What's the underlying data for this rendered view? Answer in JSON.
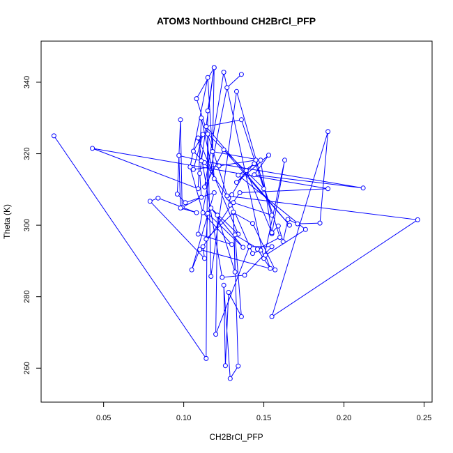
{
  "chart_data": {
    "type": "line",
    "title": "ATOM3 Northbound CH2BrCl_PFP",
    "xlabel": "CH2BrCl_PFP",
    "ylabel": "Theta (K)",
    "xlim": [
      0.011,
      0.255
    ],
    "ylim": [
      250.5,
      351.5
    ],
    "xticks": [
      0.05,
      0.1,
      0.15,
      0.2,
      0.25
    ],
    "xtick_labels": [
      "0.05",
      "0.10",
      "0.15",
      "0.20",
      "0.25"
    ],
    "yticks": [
      260,
      280,
      300,
      320,
      340
    ],
    "ytick_labels": [
      "260",
      "280",
      "300",
      "320",
      "340"
    ],
    "grid": false,
    "legend": "none",
    "markers": "open-circle",
    "series": [
      {
        "color": "#0000ff",
        "points": [
          [
            0.019,
            325.0
          ],
          [
            0.114,
            262.7
          ],
          [
            0.115,
            332.0
          ],
          [
            0.119,
            344.1
          ],
          [
            0.118,
            320.6
          ],
          [
            0.148,
            318.2
          ],
          [
            0.155,
            297.6
          ],
          [
            0.163,
            318.2
          ],
          [
            0.15,
            290.7
          ],
          [
            0.125,
            342.8
          ],
          [
            0.113,
            310.7
          ],
          [
            0.125,
            321.1
          ],
          [
            0.166,
            300.0
          ],
          [
            0.114,
            327.6
          ],
          [
            0.136,
            329.5
          ],
          [
            0.15,
            310.2
          ],
          [
            0.115,
            325.5
          ],
          [
            0.117,
            285.7
          ],
          [
            0.133,
            337.4
          ],
          [
            0.155,
            302.8
          ],
          [
            0.131,
            306.3
          ],
          [
            0.129,
            305.6
          ],
          [
            0.108,
            335.4
          ],
          [
            0.119,
            344.1
          ],
          [
            0.11,
            314.5
          ],
          [
            0.111,
            307.8
          ],
          [
            0.099,
            305.0
          ],
          [
            0.098,
            329.5
          ],
          [
            0.096,
            308.7
          ],
          [
            0.101,
            306.3
          ],
          [
            0.119,
            309.1
          ],
          [
            0.105,
            287.5
          ],
          [
            0.11,
            293.2
          ],
          [
            0.157,
            287.5
          ],
          [
            0.143,
            300.5
          ],
          [
            0.131,
            303.5
          ],
          [
            0.114,
            296.1
          ],
          [
            0.115,
            303.3
          ],
          [
            0.137,
            293.8
          ],
          [
            0.117,
            304.8
          ],
          [
            0.134,
            297.5
          ],
          [
            0.109,
            324.4
          ],
          [
            0.124,
            285.4
          ],
          [
            0.138,
            286.0
          ],
          [
            0.155,
            294.0
          ],
          [
            0.141,
            294.0
          ],
          [
            0.12,
            269.5
          ],
          [
            0.121,
            302.8
          ],
          [
            0.132,
            286.9
          ],
          [
            0.131,
            303.7
          ],
          [
            0.134,
            260.6
          ],
          [
            0.129,
            257.1
          ],
          [
            0.125,
            283.2
          ],
          [
            0.126,
            260.7
          ],
          [
            0.128,
            281.2
          ],
          [
            0.136,
            274.4
          ],
          [
            0.132,
            297.3
          ],
          [
            0.148,
            293.0
          ],
          [
            0.143,
            292.1
          ],
          [
            0.128,
            307.6
          ],
          [
            0.13,
            308.5
          ],
          [
            0.139,
            315.3
          ],
          [
            0.155,
            297.9
          ],
          [
            0.159,
            299.8
          ],
          [
            0.162,
            295.4
          ],
          [
            0.165,
            301.6
          ],
          [
            0.171,
            300.4
          ],
          [
            0.185,
            300.6
          ],
          [
            0.19,
            326.2
          ],
          [
            0.155,
            274.4
          ],
          [
            0.246,
            301.5
          ],
          [
            0.127,
            308.2
          ],
          [
            0.113,
            317.5
          ],
          [
            0.106,
            320.7
          ],
          [
            0.112,
            325.4
          ],
          [
            0.106,
            315.6
          ],
          [
            0.122,
            316.6
          ],
          [
            0.145,
            318.2
          ],
          [
            0.16,
            296.6
          ],
          [
            0.146,
            293.3
          ],
          [
            0.154,
            287.9
          ],
          [
            0.151,
            291.6
          ],
          [
            0.176,
            298.8
          ],
          [
            0.134,
            314.0
          ],
          [
            0.144,
            317.2
          ],
          [
            0.133,
            312.0
          ],
          [
            0.153,
            319.6
          ],
          [
            0.144,
            314.1
          ],
          [
            0.212,
            310.4
          ],
          [
            0.111,
            318.0
          ],
          [
            0.097,
            319.5
          ],
          [
            0.098,
            304.8
          ],
          [
            0.108,
            303.5
          ],
          [
            0.084,
            307.6
          ],
          [
            0.079,
            306.7
          ],
          [
            0.113,
            290.7
          ],
          [
            0.112,
            294.0
          ],
          [
            0.135,
            309.1
          ],
          [
            0.19,
            310.2
          ],
          [
            0.043,
            321.5
          ],
          [
            0.109,
            310.2
          ],
          [
            0.111,
            330.0
          ],
          [
            0.119,
            313.0
          ],
          [
            0.115,
            341.3
          ],
          [
            0.104,
            316.3
          ],
          [
            0.112,
            303.5
          ],
          [
            0.13,
            294.6
          ],
          [
            0.109,
            297.5
          ],
          [
            0.127,
            338.5
          ],
          [
            0.136,
            342.2
          ]
        ]
      }
    ]
  }
}
